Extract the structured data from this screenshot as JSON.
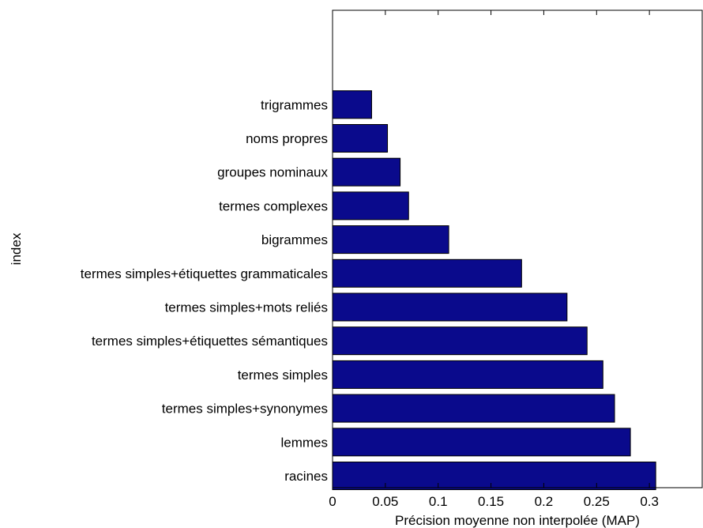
{
  "chart_data": {
    "type": "bar",
    "orientation": "horizontal",
    "categories": [
      "racines",
      "lemmes",
      "termes simples+synonymes",
      "termes simples",
      "termes simples+étiquettes sémantiques",
      "termes simples+mots reliés",
      "termes simples+étiquettes grammaticales",
      "bigrammes",
      "termes complexes",
      "groupes nominaux",
      "noms propres",
      "trigrammes"
    ],
    "values": [
      0.306,
      0.282,
      0.267,
      0.256,
      0.241,
      0.222,
      0.179,
      0.11,
      0.072,
      0.064,
      0.052,
      0.037
    ],
    "xlabel": "Précision moyenne non interpolée (MAP)",
    "ylabel": "index",
    "xlim": [
      0,
      0.35
    ],
    "xticks": [
      "0",
      "0.05",
      "0.1",
      "0.15",
      "0.2",
      "0.25",
      "0.3"
    ],
    "grid": false,
    "bar_color": "#0a0a8c"
  }
}
